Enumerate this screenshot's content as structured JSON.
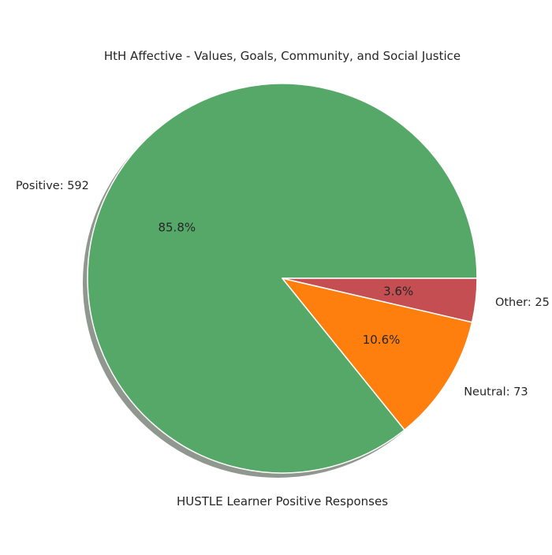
{
  "chart_data": {
    "type": "pie",
    "title": "HtH Affective - Values, Goals, Community, and Social Justice",
    "xlabel": "HUSTLE Learner Positive Responses",
    "slices": [
      {
        "label": "Positive: 592",
        "value": 592,
        "pct_label": "85.8%",
        "color": "#55a868"
      },
      {
        "label": "Neutral: 73",
        "value": 73,
        "pct_label": "10.6%",
        "color": "#ff7f0e"
      },
      {
        "label": "Other: 25",
        "value": 25,
        "pct_label": "3.6%",
        "color": "#c44e52"
      }
    ],
    "shadow": true,
    "start_angle": 0,
    "direction": "counterclockwise",
    "edge_color": "#ffffff"
  }
}
